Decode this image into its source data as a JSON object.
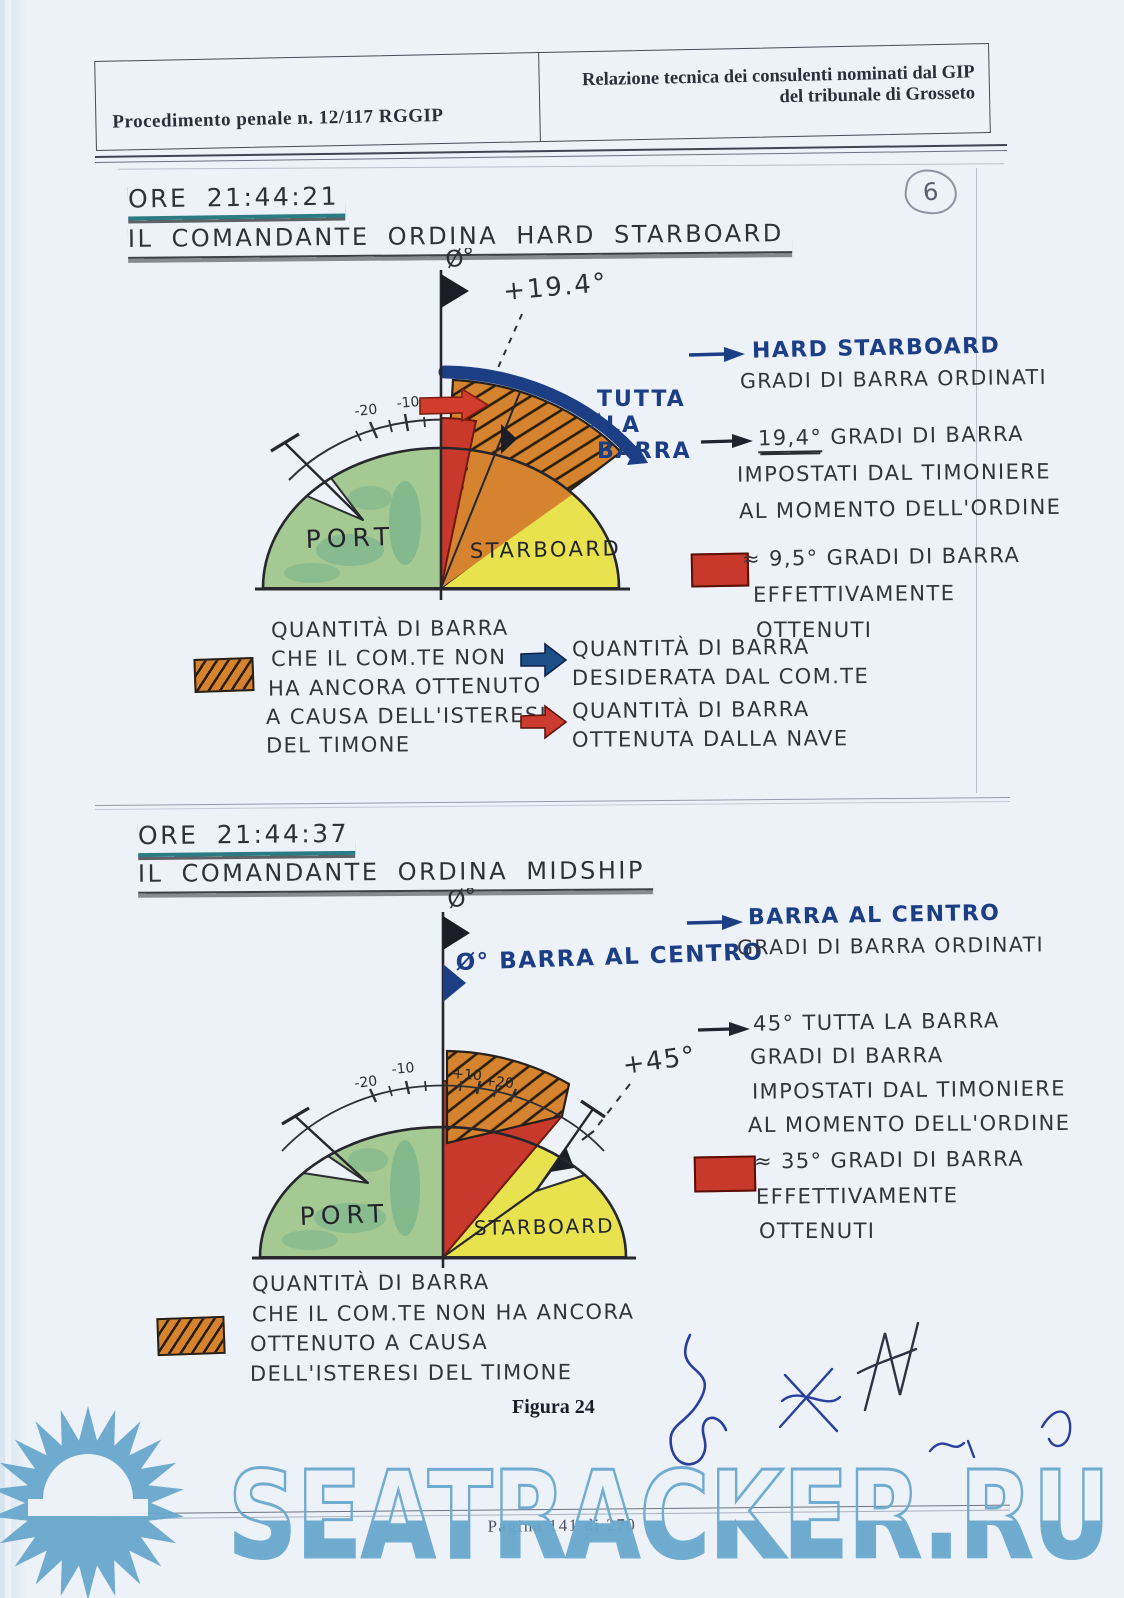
{
  "header": {
    "left": "Procedimento penale n. 12/117 RGGIP",
    "right_line1": "Relazione tecnica dei consulenti nominati dal GIP",
    "right_line2": "del tribunale di Grosseto"
  },
  "page_badge": "6",
  "colors": {
    "port_green": "#a5c993",
    "starboard_yellow": "#e7e24e",
    "ordered_blue": "#1c3e85",
    "obtained_red": "#c8392b",
    "hysteresis_orange": "#d5832e",
    "watermark_blue": "#69a8cd"
  },
  "section1": {
    "time": "ORE 21:44:21",
    "title": "IL COMANDANTE ORDINA HARD STARBOARD",
    "diagram": {
      "zero_label": "Ø°",
      "angle_label": "+19.4°",
      "full_bar_l1": "TUTTA",
      "full_bar_l2": "LA",
      "full_bar_l3": "BARRA",
      "port": "PORT",
      "starboard": "STARBOARD",
      "tick_minus20": "-20",
      "tick_minus10": "-10"
    },
    "legend_right": {
      "ordered_title": "HARD STARBOARD",
      "ordered_sub": "GRADI DI BARRA ORDINATI",
      "set_value": "19,4°",
      "set_l1": "GRADI DI BARRA",
      "set_l2": "IMPOSTATI DAL TIMONIERE",
      "set_l3": "AL MOMENTO DELL'ORDINE",
      "obtained_value": "≈ 9,5°",
      "obtained_l1": "GRADI DI BARRA",
      "obtained_l2": "EFFETTIVAMENTE",
      "obtained_l3": "OTTENUTI"
    },
    "legend_bottom": {
      "hysteresis_l1": "QUANTITÀ DI BARRA",
      "hysteresis_l2": "CHE IL COM.TE NON",
      "hysteresis_l3": "HA ANCORA OTTENUTO",
      "hysteresis_l4": "A CAUSA DELL'ISTERESI",
      "hysteresis_l5": "DEL TIMONE",
      "desired_l1": "QUANTITÀ DI BARRA",
      "desired_l2": "DESIDERATA DAL COM.TE",
      "obtained_l1": "QUANTITÀ DI BARRA",
      "obtained_l2": "OTTENUTA DALLA NAVE"
    }
  },
  "section2": {
    "time": "ORE 21:44:37",
    "title": "IL COMANDANTE ORDINA MIDSHIP",
    "diagram": {
      "zero_label": "Ø°",
      "center_label": "Ø° BARRA AL CENTRO",
      "angle_label": "+45°",
      "port": "PORT",
      "starboard": "STARBOARD",
      "tick_minus20": "-20",
      "tick_minus10": "-10",
      "tick_plus10": "+10",
      "tick_plus20": "+20"
    },
    "legend_right": {
      "ordered_title": "BARRA AL CENTRO",
      "ordered_sub": "GRADI DI BARRA ORDINATI",
      "set_value": "45°",
      "set_l1": "TUTTA LA BARRA",
      "set_l2": "GRADI DI BARRA",
      "set_l3": "IMPOSTATI DAL TIMONIERE",
      "set_l4": "AL MOMENTO DELL'ORDINE",
      "obtained_value": "≈ 35°",
      "obtained_l1": "GRADI DI BARRA",
      "obtained_l2": "EFFETTIVAMENTE",
      "obtained_l3": "OTTENUTI"
    },
    "legend_bottom": {
      "hysteresis_l1": "QUANTITÀ DI BARRA",
      "hysteresis_l2": "CHE IL COM.TE NON HA ANCORA",
      "hysteresis_l3": "OTTENUTO A CAUSA",
      "hysteresis_l4": "DELL'ISTERESI DEL TIMONE"
    }
  },
  "figure_caption": "Figura 24",
  "footer": {
    "page_text": "Pagina 141 di 270"
  },
  "watermark": {
    "text": "SEATRACKER.RU"
  }
}
